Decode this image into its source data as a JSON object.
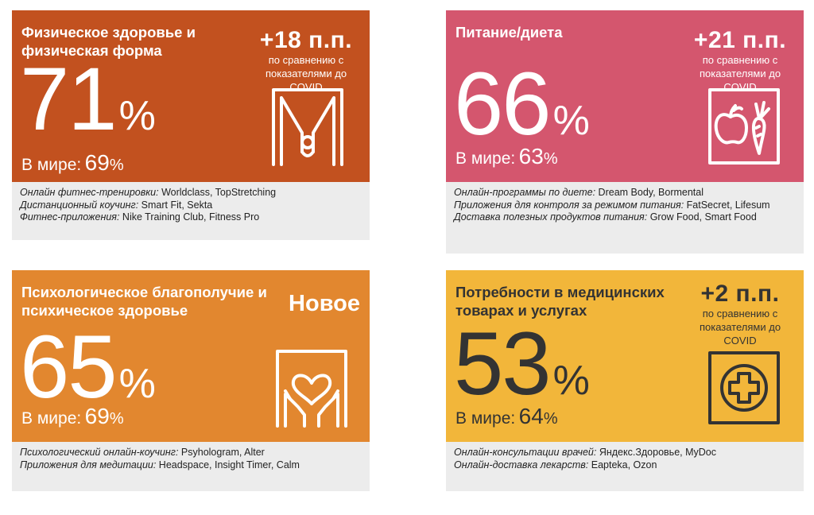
{
  "cards": [
    {
      "title": "Физическое здоровье и физическая форма",
      "delta": "+18 п.п.",
      "delta_note": "по сравнению с показателями до COVID",
      "percent": "71",
      "percent_sign": "%",
      "world_label": "В мире:",
      "world_value": "69",
      "world_sign": "%",
      "icon": "person-arms-raised-icon",
      "color": "#c2511f",
      "examples": [
        {
          "label": "Онлайн фитнес-тренировки:",
          "value": " Worldclass, TopStretching"
        },
        {
          "label": "Дистанционный коучинг:",
          "value": " Smart Fit, Sekta"
        },
        {
          "label": "Фитнес-приложения:",
          "value": " Nike Training Club, Fitness Pro"
        }
      ]
    },
    {
      "title": "Питание/диета",
      "delta": "+21 п.п.",
      "delta_note": "по сравнению с показателями до COVID",
      "percent": "66",
      "percent_sign": "%",
      "world_label": "В мире:",
      "world_value": "63",
      "world_sign": "%",
      "icon": "apple-carrot-icon",
      "color": "#d4566e",
      "examples": [
        {
          "label": "Онлайн-программы по диете:",
          "value": " Dream Body, Bormental"
        },
        {
          "label": "Приложения для контроля за режимом питания:",
          "value": " FatSecret, Lifesum"
        },
        {
          "label": "Доставка полезных продуктов питания:",
          "value": " Grow Food, Smart Food"
        }
      ]
    },
    {
      "title": "Психологическое благополучие и психическое здоровье",
      "badge": "Новое",
      "percent": "65",
      "percent_sign": "%",
      "world_label": "В мире:",
      "world_value": "69",
      "world_sign": "%",
      "icon": "heart-in-hands-icon",
      "color": "#e2872f",
      "examples": [
        {
          "label": "Психологический онлайн-коучинг:",
          "value": " Psyhologram, Alter"
        },
        {
          "label": "Приложения для медитации:",
          "value": " Headspace, Insight Timer, Calm"
        }
      ]
    },
    {
      "title": "Потребности в медицинских товарах и услугах",
      "delta": "+2 п.п.",
      "delta_note": "по сравнению с показателями до COVID",
      "percent": "53",
      "percent_sign": "%",
      "world_label": "В мире:",
      "world_value": "64",
      "world_sign": "%",
      "icon": "medical-cross-icon",
      "color": "#f2b63a",
      "examples": [
        {
          "label": "Онлайн-консультации врачей:",
          "value": " Яндекс.Здоровье, MyDoc"
        },
        {
          "label": "Онлайн-доставка лекарств:",
          "value": " Eapteka, Ozon"
        }
      ]
    }
  ]
}
